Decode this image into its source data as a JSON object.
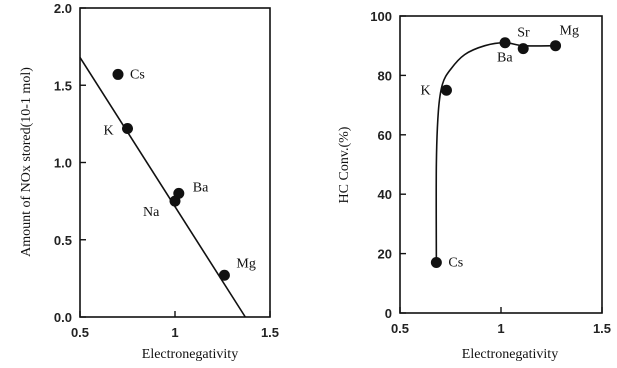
{
  "chart_data": [
    {
      "type": "scatter",
      "xlabel": "Electronegativity",
      "ylabel": "Amount of NOx stored(10-1 mol)",
      "xlim": [
        0.5,
        1.5
      ],
      "ylim": [
        0.0,
        2.0
      ],
      "xticks": [
        "0.5",
        "1",
        "1.5"
      ],
      "yticks": [
        "0.0",
        "0.5",
        "1.0",
        "1.5",
        "2.0"
      ],
      "points": [
        {
          "label": "Cs",
          "x": 0.7,
          "y": 1.57
        },
        {
          "label": "K",
          "x": 0.75,
          "y": 1.22
        },
        {
          "label": "Na",
          "x": 1.0,
          "y": 0.75
        },
        {
          "label": "Ba",
          "x": 1.02,
          "y": 0.8
        },
        {
          "label": "Mg",
          "x": 1.26,
          "y": 0.27
        }
      ],
      "fit_line": {
        "x": [
          0.5,
          1.37
        ],
        "y": [
          1.68,
          0.0
        ]
      }
    },
    {
      "type": "scatter",
      "xlabel": "Electronegativity",
      "ylabel": "HC Conv.(%)",
      "xlim": [
        0.5,
        1.5
      ],
      "ylim": [
        0,
        100
      ],
      "xticks": [
        "0.5",
        "1",
        "1.5"
      ],
      "yticks": [
        "0",
        "20",
        "40",
        "60",
        "80",
        "100"
      ],
      "points": [
        {
          "label": "Cs",
          "x": 0.68,
          "y": 17
        },
        {
          "label": "K",
          "x": 0.73,
          "y": 75
        },
        {
          "label": "Ba",
          "x": 1.02,
          "y": 91
        },
        {
          "label": "Sr",
          "x": 1.11,
          "y": 89
        },
        {
          "label": "Mg",
          "x": 1.27,
          "y": 90
        }
      ],
      "trend_curve": {
        "x": [
          0.68,
          0.68,
          0.69,
          0.71,
          0.75,
          0.82,
          0.92,
          1.02,
          1.11,
          1.27
        ],
        "y": [
          17,
          50,
          68,
          77,
          82,
          87,
          90,
          91,
          90,
          90
        ]
      }
    }
  ]
}
